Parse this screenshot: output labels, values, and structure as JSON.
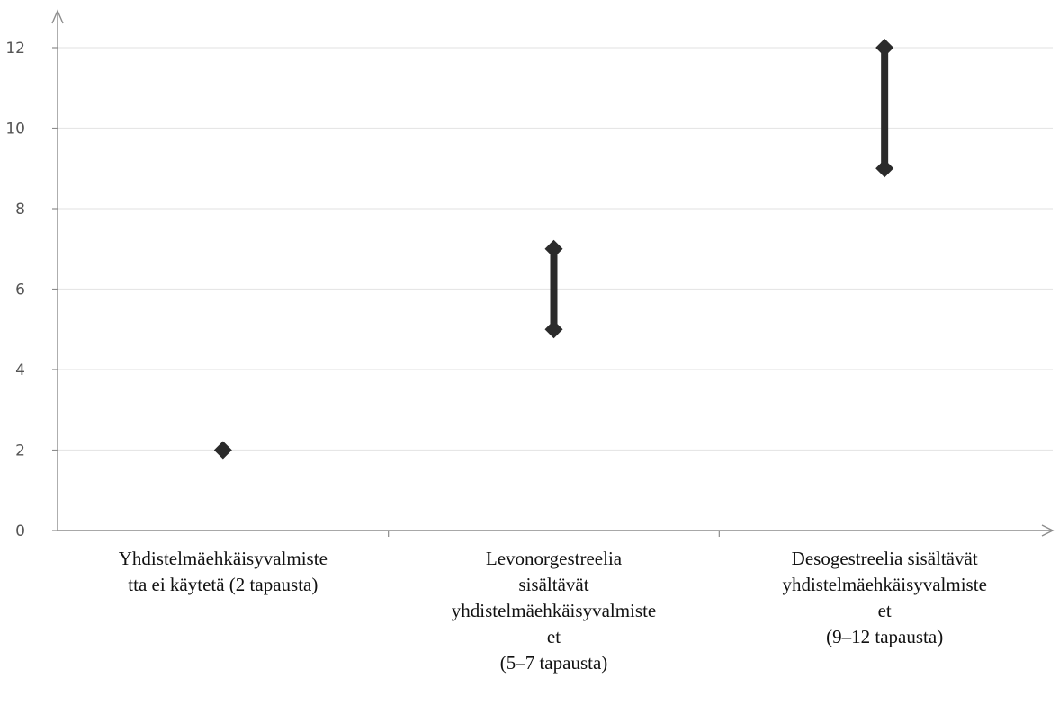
{
  "chart_data": {
    "type": "range",
    "title": "",
    "xlabel": "",
    "ylabel": "",
    "ylim": [
      0,
      12
    ],
    "yticks": [
      0,
      2,
      4,
      6,
      8,
      10,
      12
    ],
    "grid": true,
    "categories": [
      [
        "Yhdistelmäehkäisyvalmiste",
        "tta ei käytetä (2 tapausta)"
      ],
      [
        "Levonorgestreelia",
        "sisältävät",
        "yhdistelmäehkäisyvalmiste",
        "et",
        "(5–7 tapausta)"
      ],
      [
        "Desogestreelia sisältävät",
        "yhdistelmäehkäisyvalmiste",
        "et",
        "(9–12 tapausta)"
      ]
    ],
    "ranges": [
      {
        "low": 2,
        "high": 2
      },
      {
        "low": 5,
        "high": 7
      },
      {
        "low": 9,
        "high": 12
      }
    ],
    "colors": {
      "marker": "#2b2b2b",
      "grid": "#e6e6e6",
      "axis": "#8c8c8c"
    }
  }
}
